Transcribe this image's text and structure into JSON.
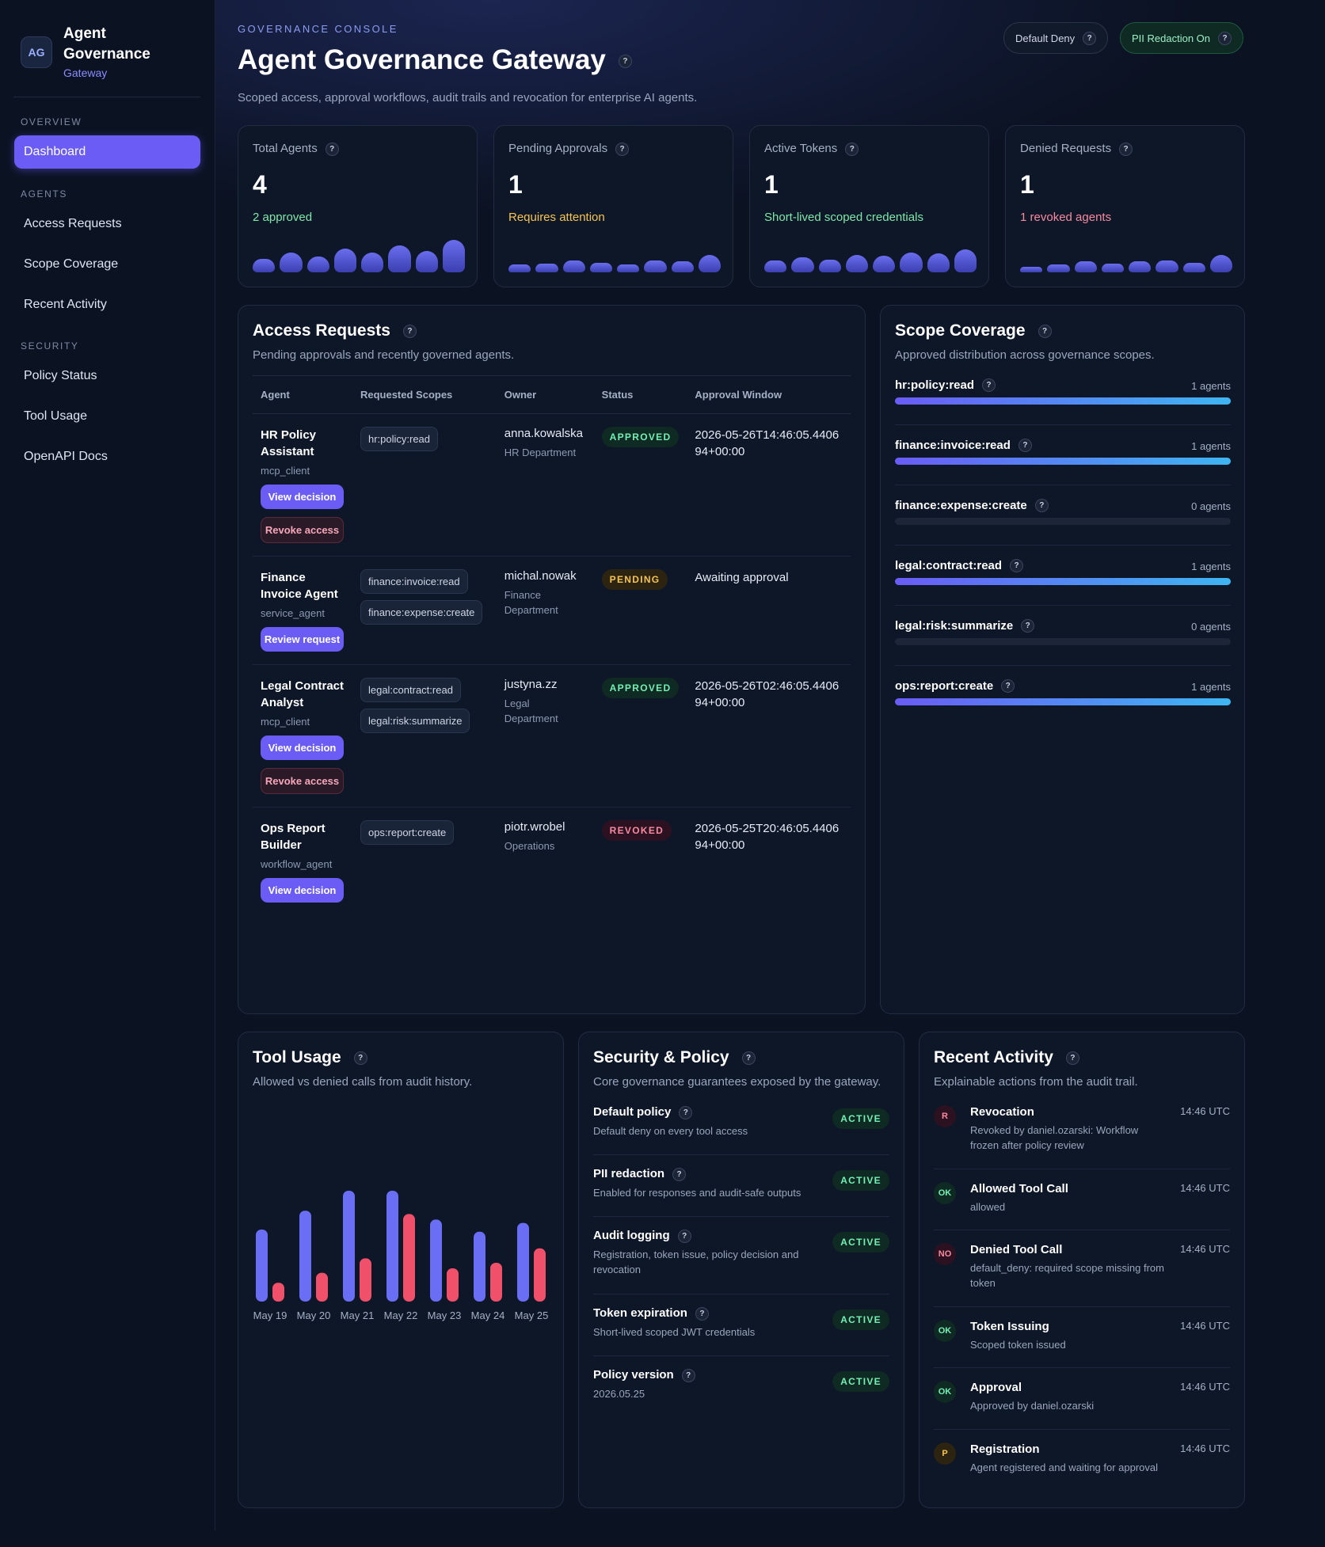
{
  "sidebar": {
    "logo": "AG",
    "title_line1": "Agent",
    "title_line2": "Governance",
    "subtitle": "Gateway",
    "sections": [
      {
        "label": "OVERVIEW",
        "items": [
          "Dashboard"
        ]
      },
      {
        "label": "AGENTS",
        "items": [
          "Access Requests",
          "Scope Coverage",
          "Recent Activity"
        ]
      },
      {
        "label": "SECURITY",
        "items": [
          "Policy Status",
          "Tool Usage",
          "OpenAPI Docs"
        ]
      }
    ],
    "active": "Dashboard"
  },
  "header": {
    "eyebrow": "GOVERNANCE CONSOLE",
    "title": "Agent Governance Gateway",
    "subtitle": "Scoped access, approval workflows, audit trails and revocation for enterprise AI agents.",
    "pills": [
      "Default Deny",
      "PII Redaction On"
    ]
  },
  "stats": [
    {
      "label": "Total Agents",
      "value": "4",
      "note": "2 approved",
      "note_color": "#7ee8a8",
      "spark": [
        0.35,
        0.5,
        0.4,
        0.6,
        0.5,
        0.68,
        0.55,
        0.82
      ]
    },
    {
      "label": "Pending Approvals",
      "value": "1",
      "note": "Requires attention",
      "note_color": "#f5c451",
      "spark": [
        0.2,
        0.22,
        0.3,
        0.25,
        0.2,
        0.3,
        0.28,
        0.45
      ]
    },
    {
      "label": "Active Tokens",
      "value": "1",
      "note": "Short-lived scoped credentials",
      "note_color": "#7ee8a8",
      "spark": [
        0.3,
        0.38,
        0.32,
        0.45,
        0.42,
        0.5,
        0.48,
        0.58
      ]
    },
    {
      "label": "Denied Requests",
      "value": "1",
      "note": "1 revoked agents",
      "note_color": "#f78aa0",
      "spark": [
        0.15,
        0.2,
        0.28,
        0.22,
        0.28,
        0.3,
        0.25,
        0.45
      ]
    }
  ],
  "access": {
    "title": "Access Requests",
    "subtitle": "Pending approvals and recently governed agents.",
    "columns": [
      "Agent",
      "Requested Scopes",
      "Owner",
      "Status",
      "Approval Window"
    ],
    "rows": [
      {
        "name": "HR Policy Assistant",
        "type": "mcp_client",
        "scopes": [
          "hr:policy:read"
        ],
        "owner": "anna.kowalska",
        "dept": "HR Department",
        "status": "APPROVED",
        "window": "2026-05-26T14:46:05.440694+00:00",
        "buttons": [
          {
            "label": "View decision",
            "kind": "p"
          },
          {
            "label": "Revoke access",
            "kind": "r"
          }
        ]
      },
      {
        "name": "Finance Invoice Agent",
        "type": "service_agent",
        "scopes": [
          "finance:invoice:read",
          "finance:expense:create"
        ],
        "owner": "michal.nowak",
        "dept": "Finance Department",
        "status": "PENDING",
        "window": "Awaiting approval",
        "buttons": [
          {
            "label": "Review request",
            "kind": "p"
          }
        ]
      },
      {
        "name": "Legal Contract Analyst",
        "type": "mcp_client",
        "scopes": [
          "legal:contract:read",
          "legal:risk:summarize"
        ],
        "owner": "justyna.zz",
        "dept": "Legal Department",
        "status": "APPROVED",
        "window": "2026-05-26T02:46:05.440694+00:00",
        "buttons": [
          {
            "label": "View decision",
            "kind": "p"
          },
          {
            "label": "Revoke access",
            "kind": "r"
          }
        ]
      },
      {
        "name": "Ops Report Builder",
        "type": "workflow_agent",
        "scopes": [
          "ops:report:create"
        ],
        "owner": "piotr.wrobel",
        "dept": "Operations",
        "status": "REVOKED",
        "window": "2026-05-25T20:46:05.440694+00:00",
        "buttons": [
          {
            "label": "View decision",
            "kind": "p"
          }
        ]
      }
    ]
  },
  "coverage": {
    "title": "Scope Coverage",
    "subtitle": "Approved distribution across governance scopes.",
    "items": [
      {
        "scope": "hr:policy:read",
        "count": "1 agents",
        "fill": 1
      },
      {
        "scope": "finance:invoice:read",
        "count": "1 agents",
        "fill": 1
      },
      {
        "scope": "finance:expense:create",
        "count": "0 agents",
        "fill": 0
      },
      {
        "scope": "legal:contract:read",
        "count": "1 agents",
        "fill": 1
      },
      {
        "scope": "legal:risk:summarize",
        "count": "0 agents",
        "fill": 0
      },
      {
        "scope": "ops:report:create",
        "count": "1 agents",
        "fill": 1
      }
    ]
  },
  "tool_usage": {
    "title": "Tool Usage",
    "subtitle": "Allowed vs denied calls from audit history.",
    "colors": {
      "allowed": "#6a6ef5",
      "denied": "#f0506a"
    }
  },
  "chart_data": {
    "type": "bar",
    "categories": [
      "May 19",
      "May 20",
      "May 21",
      "May 22",
      "May 23",
      "May 24",
      "May 25"
    ],
    "series": [
      {
        "values": [
          65,
          82,
          100,
          100,
          74,
          63,
          71
        ]
      },
      {
        "values": [
          17,
          26,
          39,
          79,
          30,
          35,
          48
        ]
      }
    ],
    "ylim": [
      0,
      100
    ],
    "grid": false
  },
  "policy": {
    "title": "Security & Policy",
    "subtitle": "Core governance guarantees exposed by the gateway.",
    "items": [
      {
        "name": "Default policy",
        "desc": "Default deny on every tool access",
        "badge": "ACTIVE"
      },
      {
        "name": "PII redaction",
        "desc": "Enabled for responses and audit-safe outputs",
        "badge": "ACTIVE"
      },
      {
        "name": "Audit logging",
        "desc": "Registration, token issue, policy decision and revocation",
        "badge": "ACTIVE"
      },
      {
        "name": "Token expiration",
        "desc": "Short-lived scoped JWT credentials",
        "badge": "ACTIVE"
      },
      {
        "name": "Policy version",
        "desc": "2026.05.25",
        "badge": "ACTIVE"
      }
    ]
  },
  "activity": {
    "title": "Recent Activity",
    "subtitle": "Explainable actions from the audit trail.",
    "items": [
      {
        "icon": "R",
        "kind": "red",
        "title": "Revocation",
        "desc": "Revoked by daniel.ozarski: Workflow frozen after policy review",
        "time": "14:46 UTC"
      },
      {
        "icon": "OK",
        "kind": "green",
        "title": "Allowed Tool Call",
        "desc": "allowed",
        "time": "14:46 UTC"
      },
      {
        "icon": "NO",
        "kind": "red",
        "title": "Denied Tool Call",
        "desc": "default_deny: required scope missing from token",
        "time": "14:46 UTC"
      },
      {
        "icon": "OK",
        "kind": "green",
        "title": "Token Issuing",
        "desc": "Scoped token issued",
        "time": "14:46 UTC"
      },
      {
        "icon": "OK",
        "kind": "green",
        "title": "Approval",
        "desc": "Approved by daniel.ozarski",
        "time": "14:46 UTC"
      },
      {
        "icon": "P",
        "kind": "amber",
        "title": "Registration",
        "desc": "Agent registered and waiting for approval",
        "time": "14:46 UTC"
      }
    ]
  }
}
